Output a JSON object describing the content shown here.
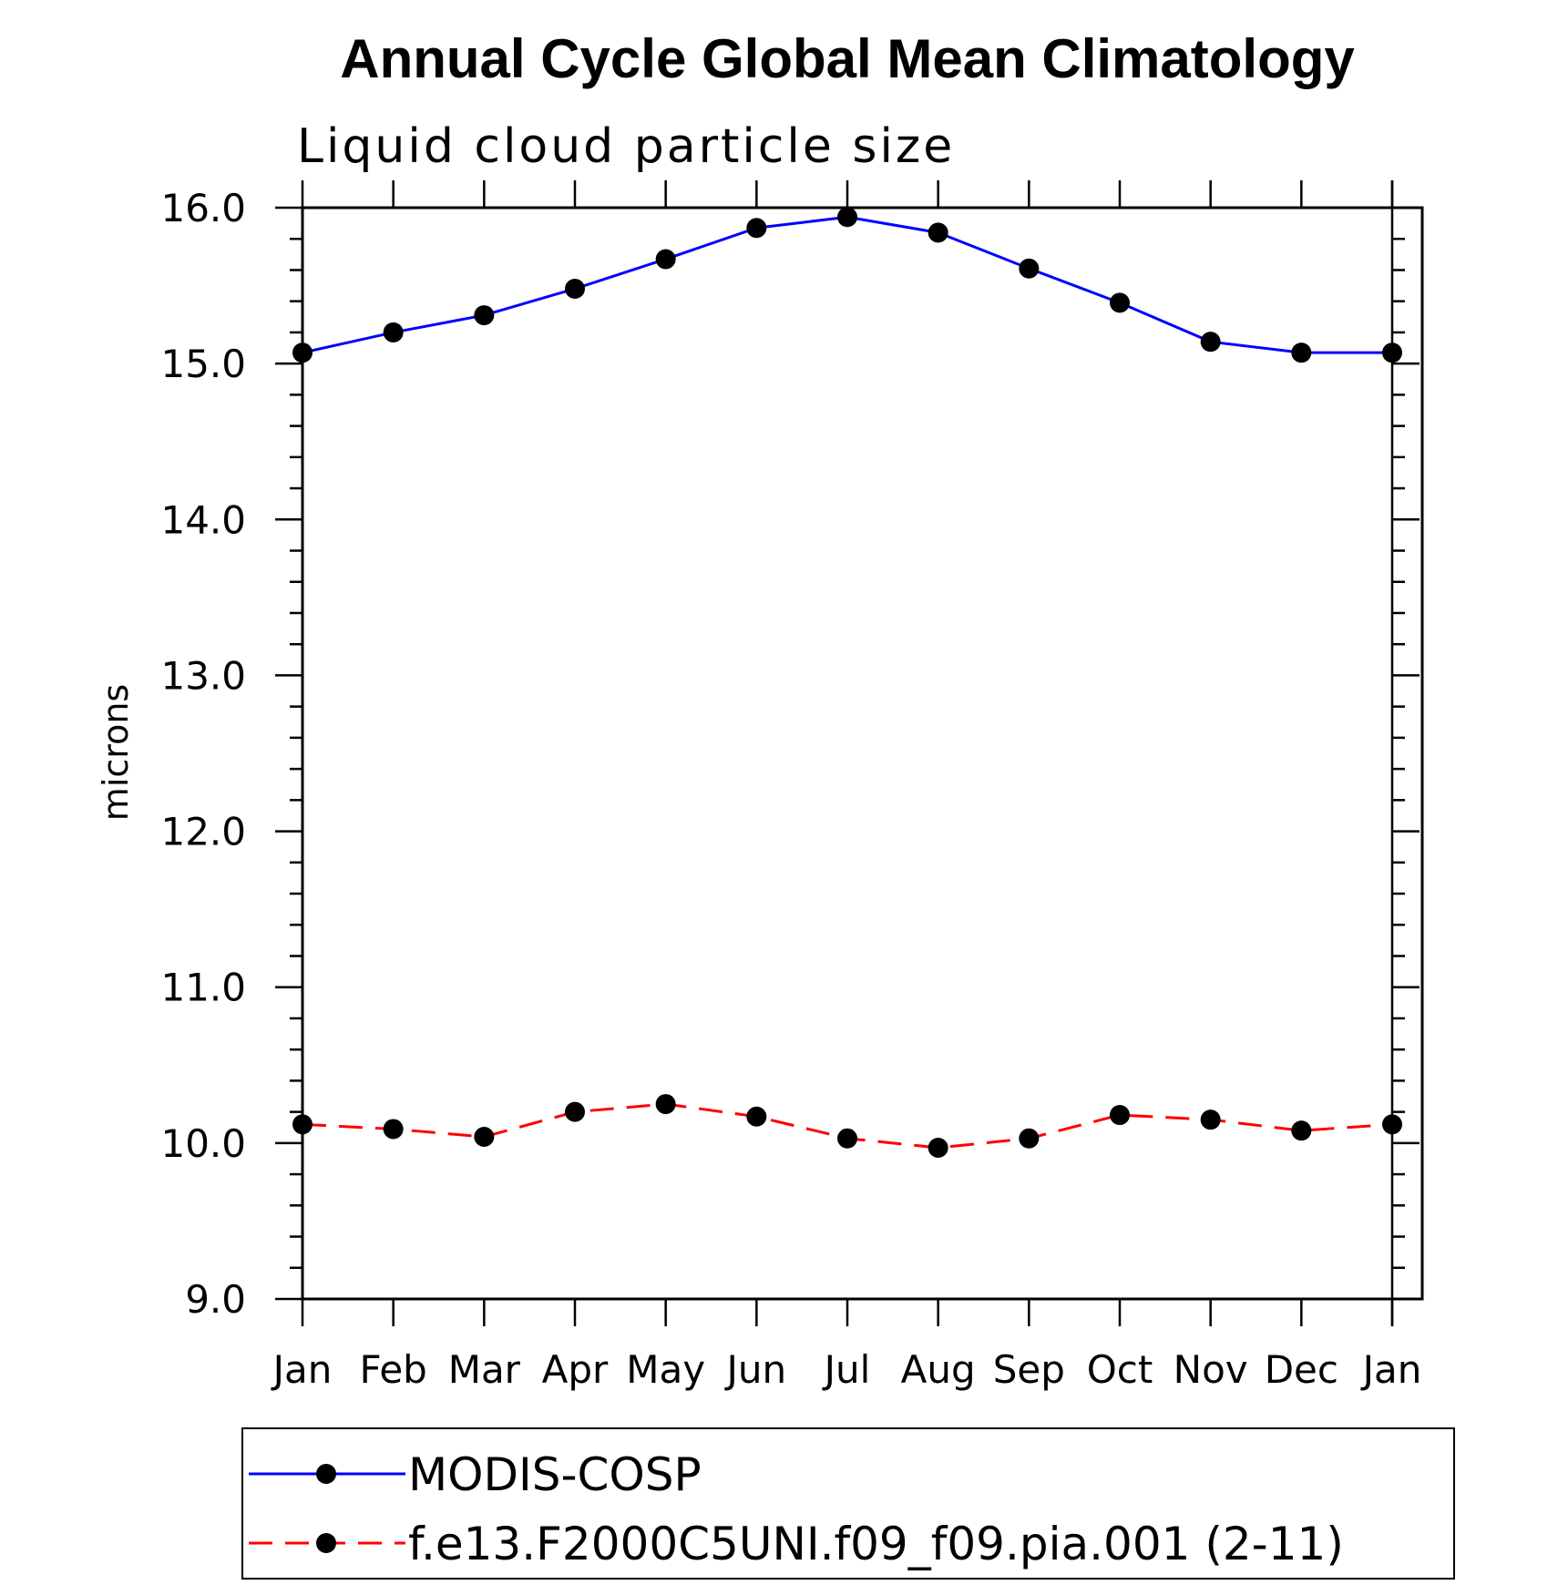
{
  "chart_data": {
    "type": "line",
    "title": "Annual Cycle Global Mean Climatology",
    "subtitle": "Liquid cloud particle size",
    "xlabel": "",
    "ylabel": "microns",
    "categories": [
      "Jan",
      "Feb",
      "Mar",
      "Apr",
      "May",
      "Jun",
      "Jul",
      "Aug",
      "Sep",
      "Oct",
      "Nov",
      "Dec",
      "Jan"
    ],
    "ylim": [
      9.0,
      16.0
    ],
    "yticks": [
      "9.0",
      "10.0",
      "11.0",
      "12.0",
      "13.0",
      "14.0",
      "15.0",
      "16.0"
    ],
    "series": [
      {
        "name": "MODIS-COSP",
        "color": "#0000ff",
        "line_style": "solid",
        "values": [
          15.07,
          15.2,
          15.31,
          15.48,
          15.67,
          15.87,
          15.94,
          15.84,
          15.61,
          15.39,
          15.14,
          15.07,
          15.07
        ]
      },
      {
        "name": "f.e13.F2000C5UNI.f09_f09.pia.001 (2-11)",
        "color": "#ff0000",
        "line_style": "dashed",
        "values": [
          10.12,
          10.09,
          10.04,
          10.2,
          10.25,
          10.17,
          10.03,
          9.97,
          10.03,
          10.18,
          10.15,
          10.08,
          10.12
        ]
      }
    ],
    "marker": "filled-circle",
    "marker_color": "#000000",
    "legend_position": "bottom",
    "grid": false
  }
}
